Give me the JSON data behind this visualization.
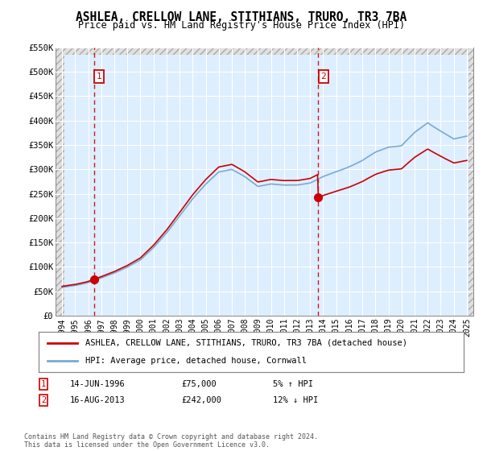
{
  "title": "ASHLEA, CRELLOW LANE, STITHIANS, TRURO, TR3 7BA",
  "subtitle": "Price paid vs. HM Land Registry's House Price Index (HPI)",
  "legend_label_red": "ASHLEA, CRELLOW LANE, STITHIANS, TRURO, TR3 7BA (detached house)",
  "legend_label_blue": "HPI: Average price, detached house, Cornwall",
  "annotation1_date": "14-JUN-1996",
  "annotation1_price": "£75,000",
  "annotation1_hpi": "5% ↑ HPI",
  "annotation2_date": "16-AUG-2013",
  "annotation2_price": "£242,000",
  "annotation2_hpi": "12% ↓ HPI",
  "footer": "Contains HM Land Registry data © Crown copyright and database right 2024.\nThis data is licensed under the Open Government Licence v3.0.",
  "sale1_year": 1996.45,
  "sale1_price": 75000,
  "sale2_year": 2013.62,
  "sale2_price": 242000,
  "ylim": [
    0,
    550000
  ],
  "xlim": [
    1993.5,
    2025.5
  ],
  "ytick_values": [
    0,
    50000,
    100000,
    150000,
    200000,
    250000,
    300000,
    350000,
    400000,
    450000,
    500000,
    550000
  ],
  "ytick_labels": [
    "£0",
    "£50K",
    "£100K",
    "£150K",
    "£200K",
    "£250K",
    "£300K",
    "£350K",
    "£400K",
    "£450K",
    "£500K",
    "£550K"
  ],
  "xtick_years": [
    1994,
    1995,
    1996,
    1997,
    1998,
    1999,
    2000,
    2001,
    2002,
    2003,
    2004,
    2005,
    2006,
    2007,
    2008,
    2009,
    2010,
    2011,
    2012,
    2013,
    2014,
    2015,
    2016,
    2017,
    2018,
    2019,
    2020,
    2021,
    2022,
    2023,
    2024,
    2025
  ],
  "hpi_color": "#7aaad0",
  "price_color": "#cc0000",
  "dashed_color": "#cc0000",
  "bg_color": "#ddeeff",
  "grid_color": "#ffffff",
  "box_color": "#cc0000",
  "hpi_key_years": [
    1994,
    1995,
    1996,
    1997,
    1998,
    1999,
    2000,
    2001,
    2002,
    2003,
    2004,
    2005,
    2006,
    2007,
    2008,
    2009,
    2010,
    2011,
    2012,
    2013,
    2014,
    2015,
    2016,
    2017,
    2018,
    2019,
    2020,
    2021,
    2022,
    2023,
    2024,
    2025
  ],
  "hpi_key_vals": [
    58000,
    62000,
    68000,
    78000,
    88000,
    100000,
    115000,
    140000,
    170000,
    205000,
    240000,
    270000,
    295000,
    300000,
    285000,
    265000,
    270000,
    268000,
    268000,
    272000,
    285000,
    295000,
    305000,
    318000,
    335000,
    345000,
    348000,
    375000,
    395000,
    378000,
    362000,
    368000
  ]
}
